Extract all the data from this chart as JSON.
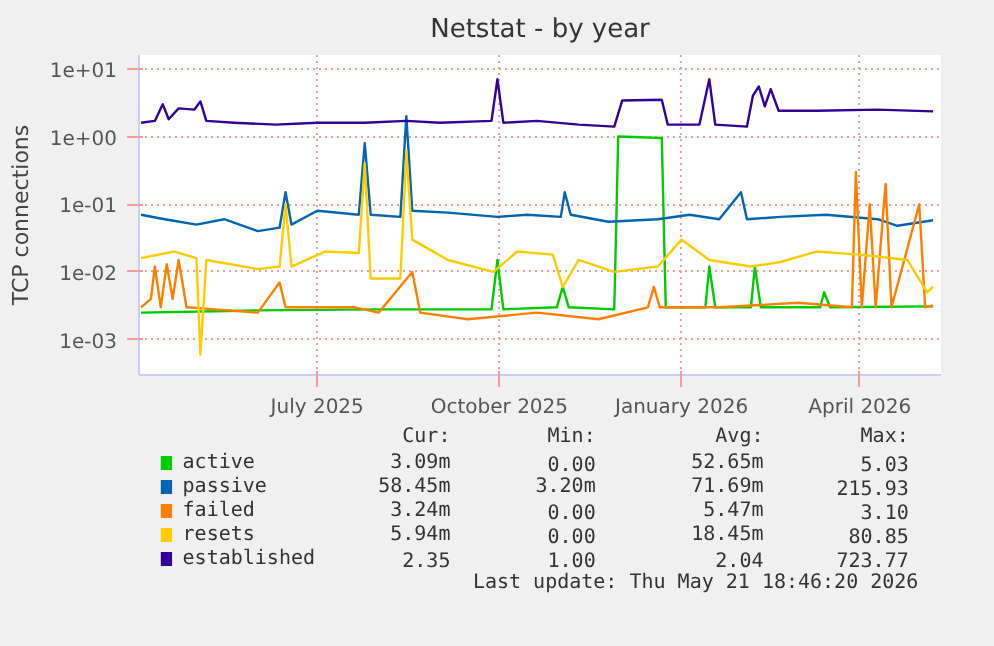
{
  "chart_data": {
    "type": "line",
    "title": "Netstat - by year",
    "ylabel": "TCP connections",
    "log": "y",
    "grid": true,
    "legend": "bottom",
    "line_style": "solid",
    "xlim": [
      "2025-04-02",
      "2026-05-12"
    ],
    "xticks": [
      {
        "value": "2025-07-01",
        "label": "July 2025"
      },
      {
        "value": "2025-10-01",
        "label": "October 2025"
      },
      {
        "value": "2026-01-01",
        "label": "January 2026"
      },
      {
        "value": "2026-04-01",
        "label": "April 2026"
      }
    ],
    "ylim": [
      0.0003,
      16
    ],
    "yticks": [
      {
        "value": 0.001,
        "label": "1e-03"
      },
      {
        "value": 0.01,
        "label": "1e-02"
      },
      {
        "value": 0.1,
        "label": "1e-01"
      },
      {
        "value": 1,
        "label": "1e+00"
      },
      {
        "value": 10,
        "label": "1e+01"
      }
    ],
    "series": [
      {
        "name": "active",
        "color": "#00cc00",
        "x": [
          "2025-04-03",
          "2025-06-01",
          "2025-08-01",
          "2025-09-27",
          "2025-09-30",
          "2025-10-03",
          "2025-10-30",
          "2025-11-02",
          "2025-11-05",
          "2025-11-28",
          "2025-11-30",
          "2025-12-22",
          "2025-12-24",
          "2026-01-13",
          "2026-01-15",
          "2026-01-18",
          "2026-02-05",
          "2026-02-07",
          "2026-02-10",
          "2026-03-12",
          "2026-03-14",
          "2026-03-17",
          "2026-05-08"
        ],
        "values": [
          0.0025,
          0.0027,
          0.0028,
          0.0028,
          0.015,
          0.0028,
          0.003,
          0.006,
          0.003,
          0.0028,
          1.0,
          0.95,
          0.003,
          0.003,
          0.012,
          0.003,
          0.003,
          0.012,
          0.003,
          0.003,
          0.005,
          0.003,
          0.0031
        ]
      },
      {
        "name": "passive",
        "color": "#0066b3",
        "x": [
          "2025-04-03",
          "2025-04-15",
          "2025-05-01",
          "2025-05-15",
          "2025-06-01",
          "2025-06-12",
          "2025-06-15",
          "2025-06-18",
          "2025-07-01",
          "2025-07-22",
          "2025-07-25",
          "2025-07-28",
          "2025-08-12",
          "2025-08-15",
          "2025-08-18",
          "2025-09-05",
          "2025-09-30",
          "2025-10-15",
          "2025-11-01",
          "2025-11-03",
          "2025-11-06",
          "2025-11-25",
          "2025-12-20",
          "2026-01-05",
          "2026-01-20",
          "2026-01-31",
          "2026-02-03",
          "2026-02-20",
          "2026-03-15",
          "2026-04-10",
          "2026-04-20",
          "2026-05-08"
        ],
        "values": [
          0.07,
          0.06,
          0.05,
          0.06,
          0.04,
          0.045,
          0.15,
          0.05,
          0.08,
          0.07,
          0.8,
          0.07,
          0.065,
          2.0,
          0.08,
          0.075,
          0.065,
          0.07,
          0.065,
          0.15,
          0.07,
          0.055,
          0.06,
          0.07,
          0.06,
          0.15,
          0.06,
          0.065,
          0.07,
          0.06,
          0.048,
          0.058
        ]
      },
      {
        "name": "failed",
        "color": "#ff8000",
        "x": [
          "2025-04-03",
          "2025-04-08",
          "2025-04-10",
          "2025-04-13",
          "2025-04-16",
          "2025-04-19",
          "2025-04-22",
          "2025-04-26",
          "2025-05-10",
          "2025-06-01",
          "2025-06-12",
          "2025-06-15",
          "2025-07-20",
          "2025-08-01",
          "2025-08-18",
          "2025-08-22",
          "2025-09-15",
          "2025-10-20",
          "2025-11-20",
          "2025-12-15",
          "2025-12-18",
          "2025-12-21",
          "2026-01-20",
          "2026-03-01",
          "2026-03-28",
          "2026-03-30",
          "2026-04-02",
          "2026-04-06",
          "2026-04-09",
          "2026-04-14",
          "2026-04-17",
          "2026-05-01",
          "2026-05-04",
          "2026-05-08"
        ],
        "values": [
          0.003,
          0.004,
          0.012,
          0.003,
          0.013,
          0.004,
          0.015,
          0.003,
          0.0028,
          0.0025,
          0.007,
          0.003,
          0.003,
          0.0025,
          0.01,
          0.0025,
          0.002,
          0.0025,
          0.002,
          0.003,
          0.006,
          0.003,
          0.003,
          0.0035,
          0.003,
          0.3,
          0.003,
          0.1,
          0.003,
          0.2,
          0.003,
          0.1,
          0.003,
          0.0032
        ]
      },
      {
        "name": "resets",
        "color": "#ffcc00",
        "x": [
          "2025-04-03",
          "2025-04-20",
          "2025-05-01",
          "2025-05-03",
          "2025-05-06",
          "2025-06-01",
          "2025-06-12",
          "2025-06-15",
          "2025-06-18",
          "2025-07-05",
          "2025-07-22",
          "2025-07-25",
          "2025-07-28",
          "2025-08-12",
          "2025-08-15",
          "2025-08-18",
          "2025-09-05",
          "2025-09-28",
          "2025-10-10",
          "2025-10-28",
          "2025-11-02",
          "2025-11-10",
          "2025-11-28",
          "2025-12-20",
          "2026-01-01",
          "2026-01-15",
          "2026-02-05",
          "2026-02-20",
          "2026-03-10",
          "2026-04-01",
          "2026-04-25",
          "2026-05-05",
          "2026-05-08"
        ],
        "values": [
          0.016,
          0.02,
          0.016,
          0.0006,
          0.015,
          0.011,
          0.012,
          0.1,
          0.012,
          0.02,
          0.019,
          0.4,
          0.008,
          0.008,
          0.6,
          0.03,
          0.015,
          0.01,
          0.02,
          0.018,
          0.006,
          0.015,
          0.01,
          0.012,
          0.03,
          0.015,
          0.012,
          0.014,
          0.02,
          0.018,
          0.015,
          0.005,
          0.006
        ]
      },
      {
        "name": "established",
        "color": "#330099",
        "x": [
          "2025-04-03",
          "2025-04-10",
          "2025-04-14",
          "2025-04-17",
          "2025-04-22",
          "2025-04-30",
          "2025-05-03",
          "2025-05-06",
          "2025-05-20",
          "2025-06-10",
          "2025-07-01",
          "2025-07-25",
          "2025-08-15",
          "2025-09-01",
          "2025-09-27",
          "2025-09-30",
          "2025-10-03",
          "2025-10-20",
          "2025-11-10",
          "2025-11-28",
          "2025-12-02",
          "2025-12-22",
          "2025-12-25",
          "2026-01-10",
          "2026-01-15",
          "2026-01-18",
          "2026-02-03",
          "2026-02-06",
          "2026-02-09",
          "2026-02-12",
          "2026-02-15",
          "2026-02-19",
          "2026-03-10",
          "2026-04-10",
          "2026-05-08"
        ],
        "values": [
          1.6,
          1.7,
          3.0,
          1.8,
          2.6,
          2.5,
          3.3,
          1.7,
          1.6,
          1.5,
          1.6,
          1.6,
          1.7,
          1.6,
          1.7,
          7.0,
          1.6,
          1.7,
          1.5,
          1.4,
          3.4,
          3.5,
          1.5,
          1.5,
          7.0,
          1.5,
          1.4,
          4.0,
          5.5,
          2.8,
          5.0,
          2.4,
          2.4,
          2.5,
          2.35
        ]
      }
    ],
    "annotations": [
      "Cur:",
      "Min:",
      "Avg:",
      "Max:",
      "3.09m",
      "0.00",
      "52.65m",
      "5.03",
      "58.45m",
      "3.20m",
      "71.69m",
      "215.93",
      "3.24m",
      "0.00",
      "5.47m",
      "3.10",
      "5.94m",
      "0.00",
      "18.45m",
      "80.85",
      "2.35",
      "1.00",
      "2.04",
      "723.77",
      "Last update: Thu May 21 18:46:20 2026"
    ]
  }
}
